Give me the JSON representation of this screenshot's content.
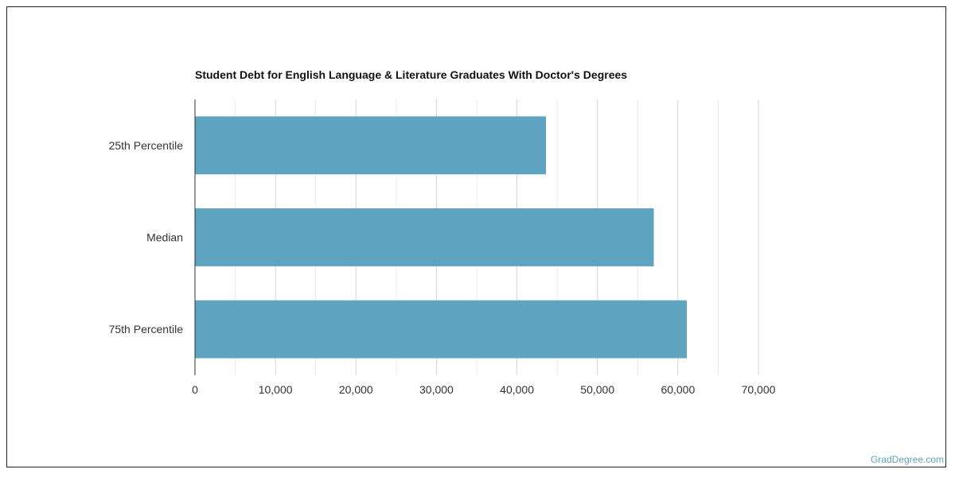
{
  "chart_data": {
    "type": "bar",
    "orientation": "horizontal",
    "title": "Student Debt for English Language & Literature Graduates With Doctor's Degrees",
    "categories": [
      "25th Percentile",
      "Median",
      "75th Percentile"
    ],
    "values": [
      43600,
      57000,
      61100
    ],
    "xlabel": "",
    "ylabel": "",
    "xlim": [
      0,
      70000
    ],
    "xticks": [
      0,
      10000,
      20000,
      30000,
      40000,
      50000,
      60000,
      70000
    ],
    "xtick_labels": [
      "0",
      "10,000",
      "20,000",
      "30,000",
      "40,000",
      "50,000",
      "60,000",
      "70,000"
    ],
    "grid": true,
    "legend": "none",
    "bar_color": "#5ea3bf"
  },
  "credit": "GradDegree.com"
}
